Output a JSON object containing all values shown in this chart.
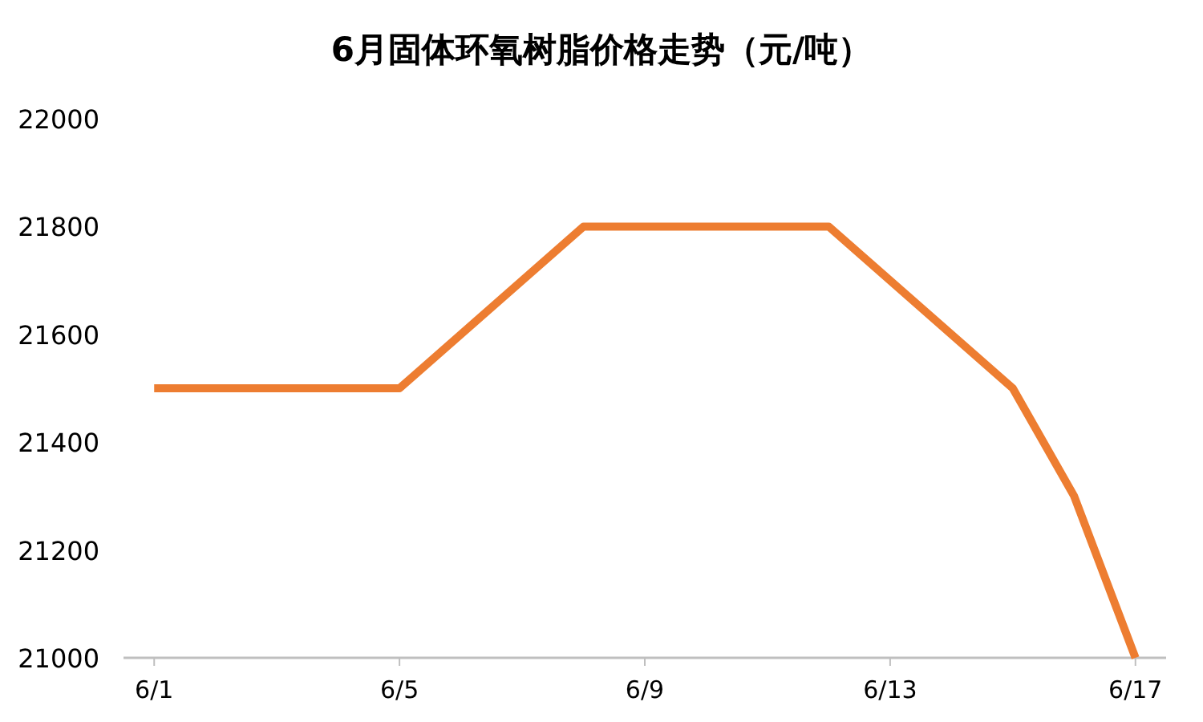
{
  "chart_data": {
    "type": "line",
    "title": "6月固体环氧树脂价格走势（元/吨）",
    "x": [
      "--06-01",
      "--06-05",
      "--06-08",
      "--06-12",
      "--06-15",
      "--06-16",
      "--06-17"
    ],
    "series": [
      {
        "color": "#ed7d31",
        "values": [
          21500,
          21500,
          21800,
          21800,
          21500,
          21300,
          21000
        ]
      }
    ],
    "xlim": [
      "--05-31T12:00",
      "--06-17T12:00"
    ],
    "xticks": [
      {
        "value": "--06-01",
        "label": "6/1"
      },
      {
        "value": "--06-05",
        "label": "6/5"
      },
      {
        "value": "--06-09",
        "label": "6/9"
      },
      {
        "value": "--06-13",
        "label": "6/13"
      },
      {
        "value": "--06-17",
        "label": "6/17"
      }
    ],
    "ylim": [
      21000,
      22000
    ],
    "yticks": [
      21000,
      21200,
      21400,
      21600,
      21800,
      22000
    ],
    "grid": false,
    "marker": "none",
    "line_style": "solid"
  }
}
